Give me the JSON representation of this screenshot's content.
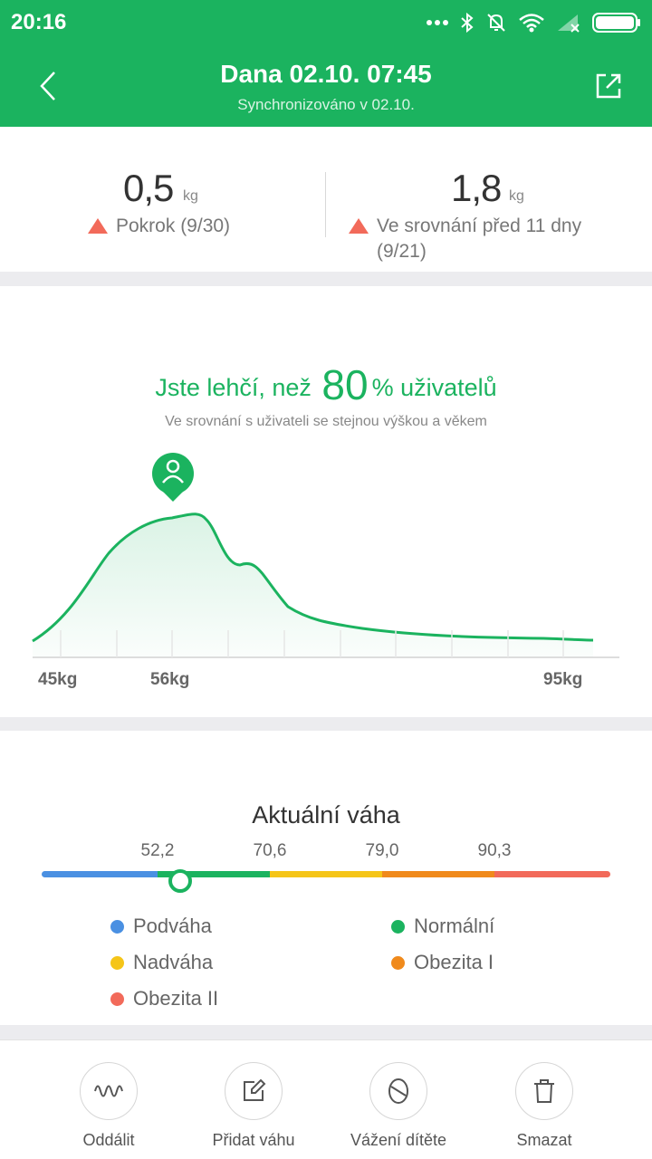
{
  "status_bar": {
    "time": "20:16",
    "icons": [
      "dots-icon",
      "bluetooth-icon",
      "bell-off-icon",
      "wifi-icon",
      "signal-icon",
      "battery-icon"
    ]
  },
  "header": {
    "title": "Dana 02.10. 07:45",
    "subtitle": "Synchronizováno v 02.10."
  },
  "stats": {
    "left": {
      "value": "0,5",
      "unit": "kg",
      "desc": "Pokrok (9/30)"
    },
    "right": {
      "value": "1,8",
      "unit": "kg",
      "desc": "Ve srovnání před 11 dny (9/21)"
    }
  },
  "comparison": {
    "title_prefix": "Jste lehčí, než",
    "percent": "80",
    "title_suffix": "% uživatelů",
    "subtitle": "Ve srovnání s uživateli se stejnou výškou a věkem",
    "x_labels": [
      "45kg",
      "56kg",
      "95kg"
    ]
  },
  "weight_scale": {
    "title": "Aktuální váha",
    "thresholds": [
      "52,2",
      "70,6",
      "79,0",
      "90,3"
    ],
    "legend": [
      {
        "label": "Podváha",
        "color": "#4a90e2"
      },
      {
        "label": "Normální",
        "color": "#1bb35f"
      },
      {
        "label": "Nadváha",
        "color": "#f5c518"
      },
      {
        "label": "Obezita I",
        "color": "#f08a1c"
      },
      {
        "label": "Obezita II",
        "color": "#f26a5a"
      }
    ]
  },
  "actions": [
    {
      "label": "Oddálit",
      "icon": "wave-icon"
    },
    {
      "label": "Přidat váhu",
      "icon": "edit-icon"
    },
    {
      "label": "Vážení dítěte",
      "icon": "baby-icon"
    },
    {
      "label": "Smazat",
      "icon": "trash-icon"
    }
  ],
  "colors": {
    "accent": "#1bb35f",
    "alert": "#f26a5a"
  }
}
